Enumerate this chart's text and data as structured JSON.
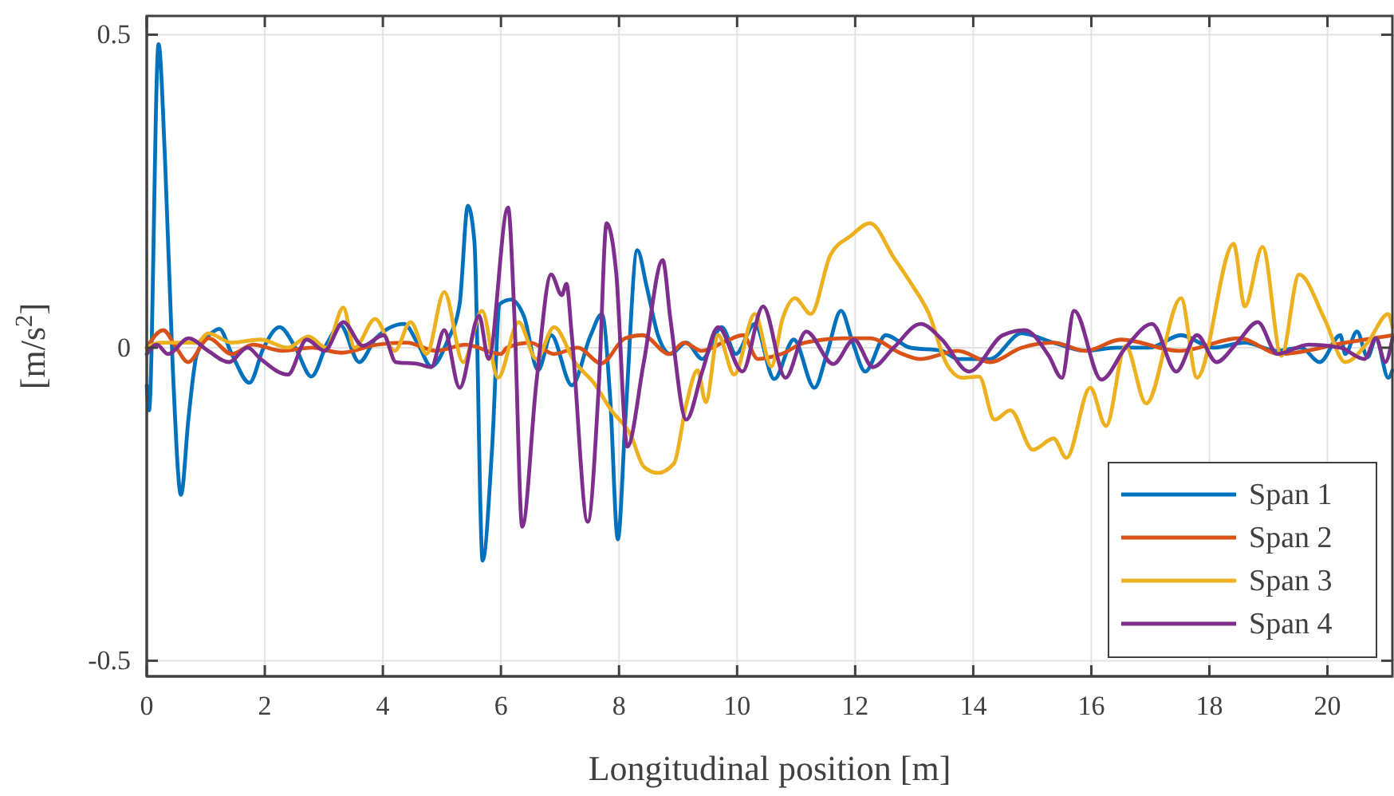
{
  "chart_data": {
    "type": "line",
    "xlabel": "Longitudinal position [m]",
    "ylabel": "[m/s$^{2}$]",
    "xlim": [
      0,
      21.1
    ],
    "ylim": [
      -0.525,
      0.53
    ],
    "xticks": [
      0,
      2,
      4,
      6,
      8,
      10,
      12,
      14,
      16,
      18,
      20
    ],
    "yticks": [
      {
        "value": -0.5,
        "label": "-0.5"
      },
      0,
      0.5
    ],
    "grid": true,
    "legend": "bottom right",
    "line_style": "solid",
    "marker": "none",
    "series": [
      {
        "name": "Span 1",
        "color": "#0072bd",
        "x": [
          0,
          0.04,
          0.2,
          0.31,
          0.44,
          0.58,
          0.71,
          0.85,
          1.12,
          1.23,
          1.44,
          1.74,
          1.98,
          2.25,
          2.52,
          2.79,
          3.06,
          3.28,
          3.6,
          3.88,
          4.36,
          4.6,
          4.82,
          5.09,
          5.3,
          5.44,
          5.55,
          5.69,
          5.85,
          5.98,
          6.17,
          6.39,
          6.63,
          6.85,
          7.2,
          7.52,
          7.71,
          7.85,
          7.98,
          8.11,
          8.31,
          8.47,
          8.66,
          8.87,
          9.14,
          9.41,
          9.74,
          9.98,
          10.3,
          10.63,
          10.96,
          11.31,
          11.52,
          11.76,
          11.96,
          12.17,
          12.52,
          12.93,
          13.47,
          13.74,
          14.28,
          14.82,
          15.36,
          15.9,
          16.44,
          16.98,
          17.52,
          18.06,
          18.6,
          19.14,
          19.55,
          19.87,
          20.22,
          20.3,
          20.5,
          20.68,
          20.82,
          21.03,
          21.1
        ],
        "values": [
          -0.06,
          -0.1,
          0.485,
          0.3,
          -0.03,
          -0.235,
          -0.11,
          -0.01,
          0.025,
          0.03,
          -0.01,
          -0.056,
          0,
          0.033,
          0,
          -0.046,
          0.008,
          0.036,
          -0.023,
          0.015,
          0.038,
          0.005,
          -0.03,
          0.01,
          0.07,
          0.227,
          0.17,
          -0.34,
          -0.16,
          0.07,
          0.077,
          0.05,
          -0.036,
          0.02,
          -0.06,
          0.02,
          0.054,
          -0.08,
          -0.306,
          -0.11,
          0.156,
          0.097,
          0.02,
          -0.01,
          0.008,
          -0.018,
          0.033,
          -0.01,
          0.038,
          -0.05,
          0.013,
          -0.064,
          -0.01,
          0.059,
          0.008,
          -0.038,
          0.02,
          0,
          -0.005,
          -0.018,
          -0.018,
          0.023,
          0.008,
          -0.005,
          0,
          0,
          0.02,
          0,
          0.008,
          -0.005,
          0,
          -0.023,
          0.02,
          -0.01,
          0.026,
          -0.015,
          0.015,
          -0.048,
          -0.036
        ]
      },
      {
        "name": "Span 2",
        "color": "#d95319",
        "x": [
          0,
          0.28,
          0.5,
          0.7,
          1.05,
          1.44,
          1.8,
          2.3,
          2.8,
          3.3,
          3.9,
          4.4,
          4.9,
          5.4,
          6.0,
          6.1,
          6.5,
          6.9,
          7.3,
          7.7,
          8.1,
          8.4,
          8.85,
          9.1,
          9.4,
          9.8,
          10.1,
          10.35,
          10.75,
          11.15,
          11.85,
          12.25,
          12.8,
          13.1,
          13.74,
          14.28,
          14.82,
          15.36,
          15.9,
          16.5,
          17.5,
          18.5,
          19.2,
          20.3,
          21.1
        ],
        "values": [
          0,
          0.028,
          0,
          -0.023,
          0.015,
          -0.01,
          0.005,
          -0.005,
          0,
          -0.008,
          0.005,
          0.008,
          -0.005,
          0.005,
          -0.01,
          0,
          0.008,
          -0.01,
          0,
          -0.025,
          0.015,
          0.02,
          -0.01,
          0.008,
          -0.005,
          0.01,
          0.02,
          -0.018,
          -0.01,
          0.008,
          0.015,
          0.015,
          -0.01,
          -0.018,
          -0.005,
          -0.023,
          0,
          0.008,
          -0.005,
          0.013,
          -0.005,
          0.015,
          -0.01,
          0.008,
          0.02
        ]
      },
      {
        "name": "Span 3",
        "color": "#edb120",
        "x": [
          0,
          0.22,
          0.85,
          1.04,
          1.44,
          1.93,
          2.39,
          2.74,
          3.04,
          3.33,
          3.52,
          3.87,
          4.2,
          4.47,
          4.74,
          5.04,
          5.36,
          5.68,
          5.95,
          6.3,
          6.6,
          6.9,
          7.25,
          7.57,
          7.87,
          8.2,
          8.42,
          8.66,
          8.93,
          9.14,
          9.33,
          9.47,
          9.68,
          9.95,
          10.3,
          10.58,
          10.77,
          10.98,
          11.25,
          11.58,
          11.93,
          12.25,
          12.66,
          12.93,
          13.25,
          13.55,
          13.82,
          14.1,
          14.36,
          14.63,
          15.01,
          15.36,
          15.58,
          15.98,
          16.25,
          16.58,
          16.93,
          17.52,
          17.79,
          18.41,
          18.6,
          18.9,
          19.22,
          19.52,
          19.95,
          20.3,
          20.68,
          21.03,
          21.1
        ],
        "values": [
          0,
          0.008,
          0.008,
          0.023,
          0.008,
          0.013,
          0,
          0.018,
          0,
          0.064,
          0,
          0.046,
          -0.005,
          0.041,
          -0.01,
          0.089,
          -0.023,
          0.059,
          -0.048,
          0.041,
          -0.018,
          0.033,
          -0.023,
          -0.056,
          -0.1,
          -0.14,
          -0.19,
          -0.2,
          -0.185,
          -0.09,
          -0.036,
          -0.087,
          0.02,
          -0.043,
          0.054,
          -0.03,
          0.046,
          0.079,
          0.054,
          0.148,
          0.179,
          0.199,
          0.143,
          0.105,
          0.054,
          -0.026,
          -0.048,
          -0.046,
          -0.115,
          -0.1,
          -0.163,
          -0.145,
          -0.176,
          -0.064,
          -0.125,
          0.003,
          -0.089,
          0.079,
          -0.048,
          0.166,
          0.066,
          0.161,
          -0.013,
          0.117,
          0.046,
          -0.023,
          0.008,
          0.054,
          0.033
        ]
      },
      {
        "name": "Span 4",
        "color": "#7e2f8e",
        "x": [
          0,
          0.17,
          0.36,
          0.71,
          1.04,
          1.39,
          1.71,
          1.93,
          2.39,
          2.71,
          3.01,
          3.33,
          3.66,
          4.01,
          4.22,
          4.6,
          4.82,
          5.04,
          5.3,
          5.63,
          5.79,
          6.12,
          6.23,
          6.36,
          6.6,
          6.85,
          7.03,
          7.11,
          7.2,
          7.47,
          7.66,
          7.79,
          7.95,
          8.14,
          8.42,
          8.74,
          8.87,
          9.14,
          9.41,
          9.68,
          10.09,
          10.44,
          10.82,
          11.17,
          11.63,
          11.98,
          12.3,
          12.65,
          13.11,
          13.47,
          13.93,
          14.5,
          14.87,
          15.28,
          15.5,
          15.71,
          16.17,
          16.58,
          17.03,
          17.44,
          17.79,
          18.12,
          18.47,
          18.82,
          19.15,
          19.68,
          20.22,
          20.63,
          20.82,
          20.98,
          21.1
        ],
        "values": [
          -0.01,
          0.005,
          -0.01,
          0.015,
          -0.005,
          -0.023,
          0,
          -0.018,
          -0.043,
          0.013,
          -0.005,
          0.041,
          0.003,
          0.02,
          -0.023,
          -0.026,
          -0.031,
          0.028,
          -0.064,
          0.051,
          -0.018,
          0.224,
          0.046,
          -0.286,
          -0.056,
          0.117,
          0.084,
          0.102,
          0.02,
          -0.278,
          -0.056,
          0.199,
          0.122,
          -0.158,
          -0.023,
          0.14,
          0.046,
          -0.115,
          -0.038,
          0.033,
          -0.038,
          0.066,
          -0.048,
          0.026,
          -0.026,
          0.013,
          -0.031,
          0,
          0.038,
          0.013,
          -0.038,
          0.02,
          0.028,
          -0.013,
          -0.048,
          0.059,
          -0.051,
          0,
          0.038,
          -0.038,
          0.02,
          -0.023,
          0.008,
          0.041,
          -0.01,
          0.005,
          0,
          -0.018,
          0.015,
          -0.023,
          0.015
        ]
      }
    ]
  }
}
